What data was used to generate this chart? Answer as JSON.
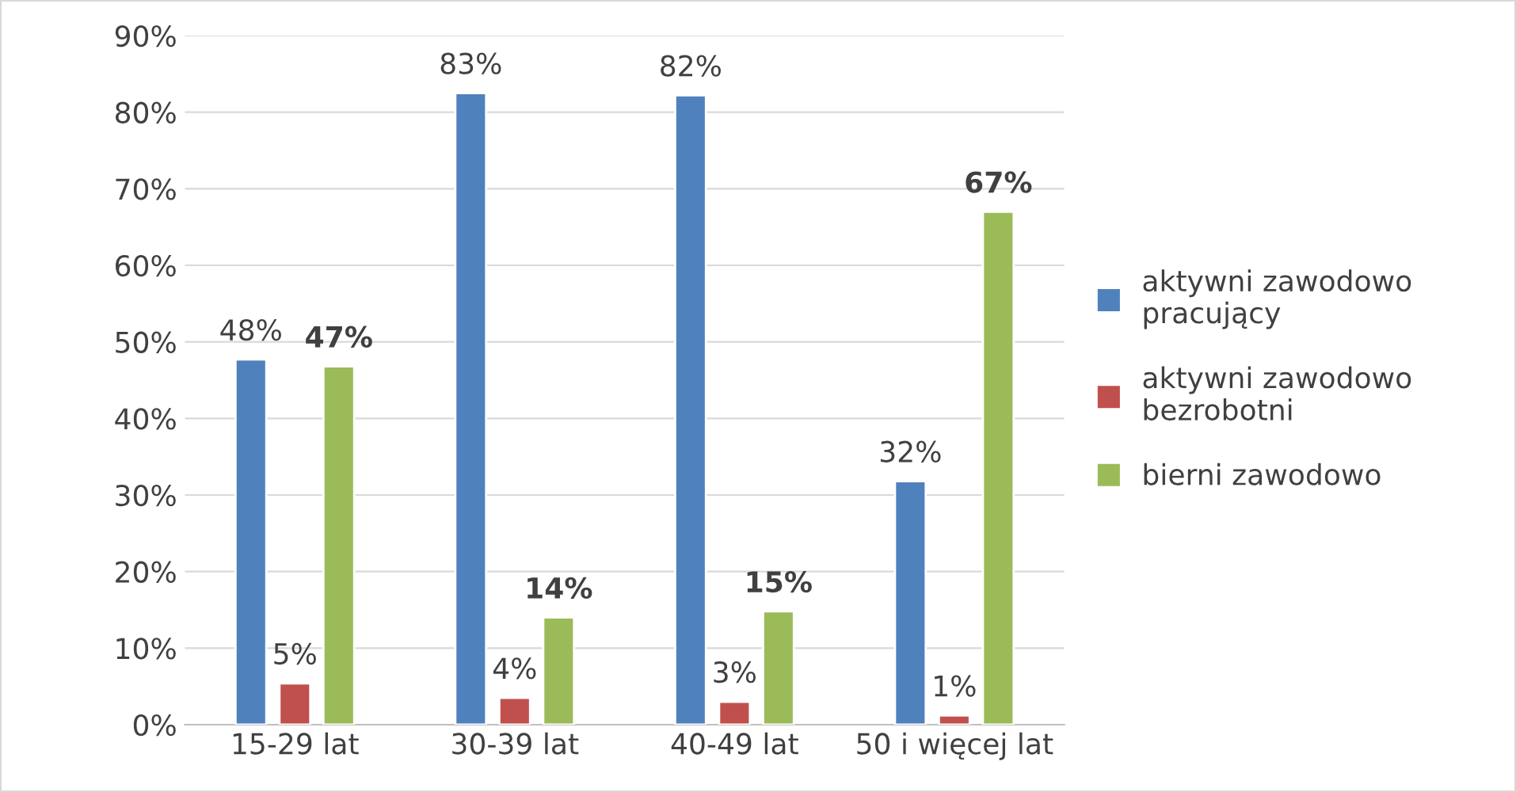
{
  "chart_data": {
    "type": "bar",
    "categories": [
      "15-29 lat",
      "30-39 lat",
      "40-49 lat",
      "50 i więcej lat"
    ],
    "series": [
      {
        "name": "aktywni zawodowo\npracujący",
        "color": "#4f81bd",
        "values": [
          47.7,
          82.5,
          82.2,
          31.8
        ],
        "value_labels": [
          "48%",
          "83%",
          "82%",
          "32%"
        ]
      },
      {
        "name": "aktywni zawodowo\nbezrobotni",
        "color": "#c0504d",
        "values": [
          5.4,
          3.5,
          3.0,
          1.2
        ],
        "value_labels": [
          "5%",
          "4%",
          "3%",
          "1%"
        ]
      },
      {
        "name": "bierni zawodowo",
        "color": "#9bbb59",
        "values": [
          46.8,
          14.0,
          14.8,
          67.0
        ],
        "value_labels": [
          "47%",
          "14%",
          "15%",
          "67%"
        ]
      }
    ],
    "ylim": [
      0,
      90
    ],
    "yticks": [
      {
        "value": 0,
        "label": "0%"
      },
      {
        "value": 10,
        "label": "10%"
      },
      {
        "value": 20,
        "label": "20%"
      },
      {
        "value": 30,
        "label": "30%"
      },
      {
        "value": 40,
        "label": "40%"
      },
      {
        "value": 50,
        "label": "50%"
      },
      {
        "value": 60,
        "label": "60%"
      },
      {
        "value": 70,
        "label": "70%"
      },
      {
        "value": 80,
        "label": "80%"
      },
      {
        "value": 90,
        "label": "90%"
      }
    ],
    "grid": "y",
    "legend": "right"
  }
}
